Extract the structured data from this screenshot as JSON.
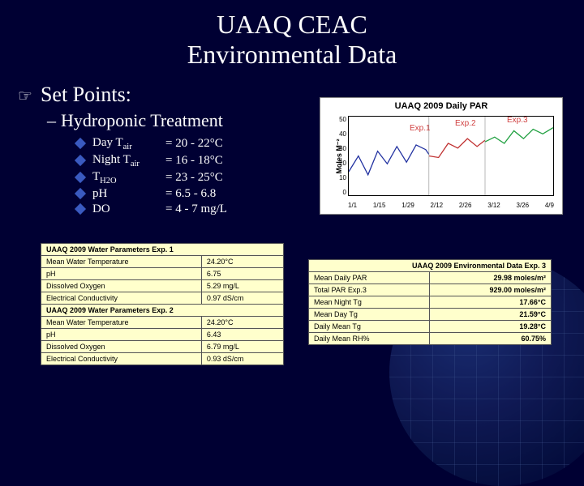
{
  "title_line1": "UAAQ CEAC",
  "title_line2": "Environmental Data",
  "setpoints_heading": "Set Points:",
  "sub_heading": "Hydroponic Treatment",
  "params": [
    {
      "label": "Day T",
      "sub": "air",
      "val": "= 20 - 22°C"
    },
    {
      "label": "Night T",
      "sub": "air",
      "val": "= 16 - 18°C"
    },
    {
      "label": "T",
      "sub": "H2O",
      "val": "= 23 - 25°C"
    },
    {
      "label": "pH",
      "sub": "",
      "val": "= 6.5 - 6.8"
    },
    {
      "label": "DO",
      "sub": "",
      "val": "= 4 - 7 mg/L"
    }
  ],
  "chart": {
    "title": "UAAQ 2009 Daily PAR",
    "ylabel": "Moles M⁻²",
    "xticks": [
      "1/1",
      "1/15",
      "1/29",
      "2/12",
      "2/26",
      "3/12",
      "3/26",
      "4/9"
    ],
    "yticks": [
      "0",
      "10",
      "20",
      "30",
      "40",
      "50"
    ],
    "exp_labels": [
      "Exp.1",
      "Exp.2",
      "Exp.3"
    ],
    "series_colors": {
      "exp1": "#2030a0",
      "exp2": "#c03030",
      "exp3": "#20a040"
    },
    "background_color": "#ffffff",
    "title_fontsize": 11,
    "label_fontsize": 9,
    "ylim": [
      0,
      50
    ]
  },
  "table_left": {
    "sections": [
      {
        "header": "UAAQ 2009 Water Parameters Exp. 1",
        "rows": [
          [
            "Mean Water Temperature",
            "24.20°C"
          ],
          [
            "pH",
            "6.75"
          ],
          [
            "Dissolved Oxygen",
            "5.29 mg/L"
          ],
          [
            "Electrical Conductivity",
            "0.97 dS/cm"
          ]
        ]
      },
      {
        "header": "UAAQ 2009 Water Parameters Exp. 2",
        "rows": [
          [
            "Mean Water Temperature",
            "24.20°C"
          ],
          [
            "pH",
            "6.43"
          ],
          [
            "Dissolved Oxygen",
            "6.79 mg/L"
          ],
          [
            "Electrical Conductivity",
            "0.93 dS/cm"
          ]
        ]
      }
    ]
  },
  "table_right": {
    "header": "UAAQ 2009 Environmental Data Exp. 3",
    "rows": [
      [
        "Mean Daily PAR",
        "29.98 moles/m²"
      ],
      [
        "Total PAR Exp.3",
        "929.00 moles/m²"
      ],
      [
        "Mean Night Tg",
        "17.66°C"
      ],
      [
        "Mean Day Tg",
        "21.59°C"
      ],
      [
        "Daily Mean Tg",
        "19.28°C"
      ],
      [
        "Daily Mean RH%",
        "60.75%"
      ]
    ]
  },
  "colors": {
    "slide_bg": "#000033",
    "text": "#ffffff",
    "table_bg": "#ffffcc",
    "bullet_diamond": "#3a5ac0"
  }
}
